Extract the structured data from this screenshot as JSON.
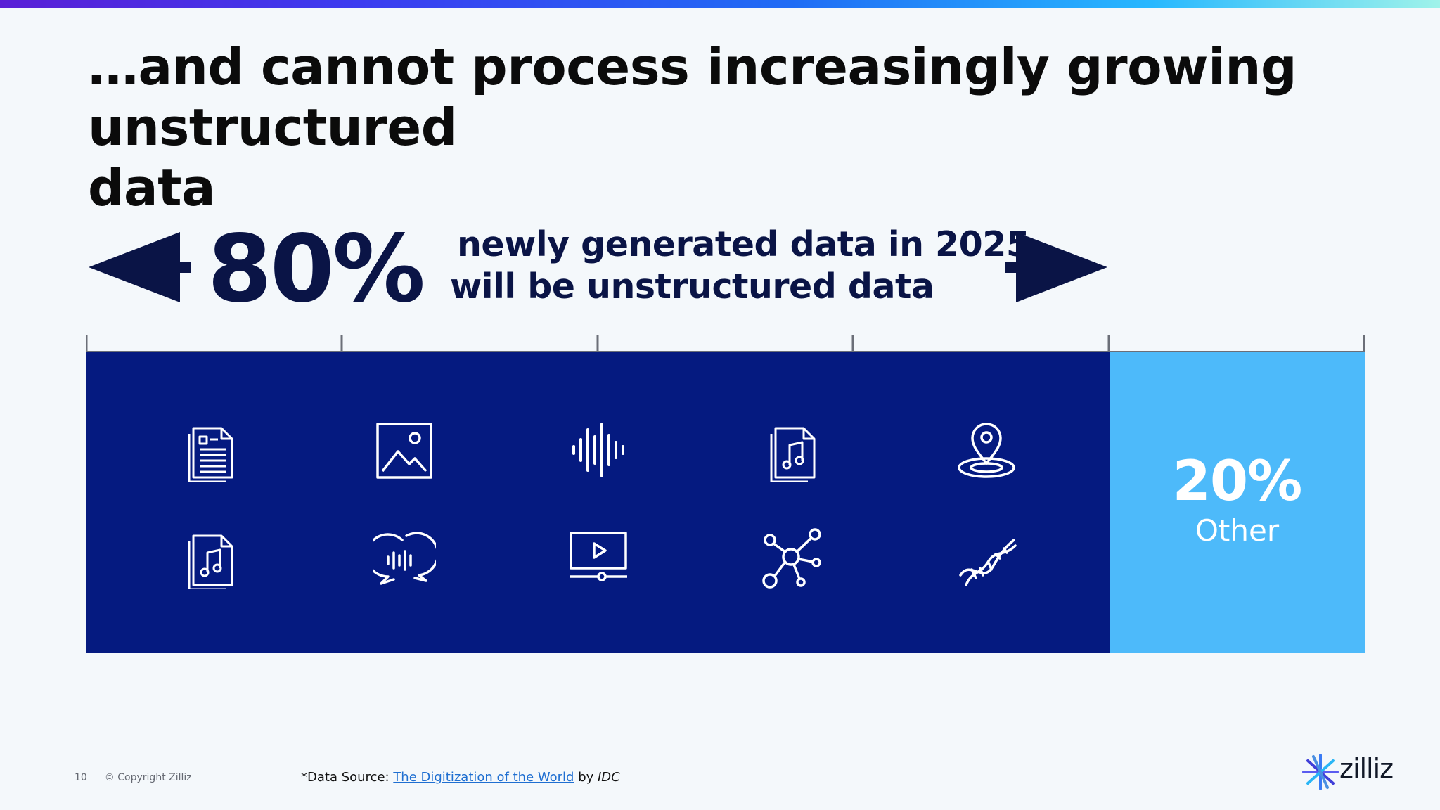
{
  "slide": {
    "title": "…and cannot process increasingly growing unstructured\ndata",
    "headline": {
      "percent": "80%",
      "line1": "newly generated data in 2025",
      "line2": "will be unstructured data"
    },
    "other": {
      "percent": "20%",
      "label": "Other"
    },
    "unstructured_share": 0.8,
    "icons": [
      "text-document-icon",
      "image-icon",
      "audio-waveform-icon",
      "music-file-icon",
      "location-pin-icon",
      "music-file-icon",
      "voice-chat-icon",
      "video-player-icon",
      "network-graph-icon",
      "dna-icon"
    ],
    "colors": {
      "unstructured": "#051a80",
      "other": "#4dbafa",
      "text_dark": "#0a1446"
    }
  },
  "footer": {
    "page_number": "10",
    "copyright": "© Copyright Zilliz",
    "source_prefix": "*Data Source: ",
    "source_link": "The Digitization of the World",
    "source_by": " by ",
    "source_org": "IDC"
  },
  "logo": {
    "text": "zilliz"
  }
}
